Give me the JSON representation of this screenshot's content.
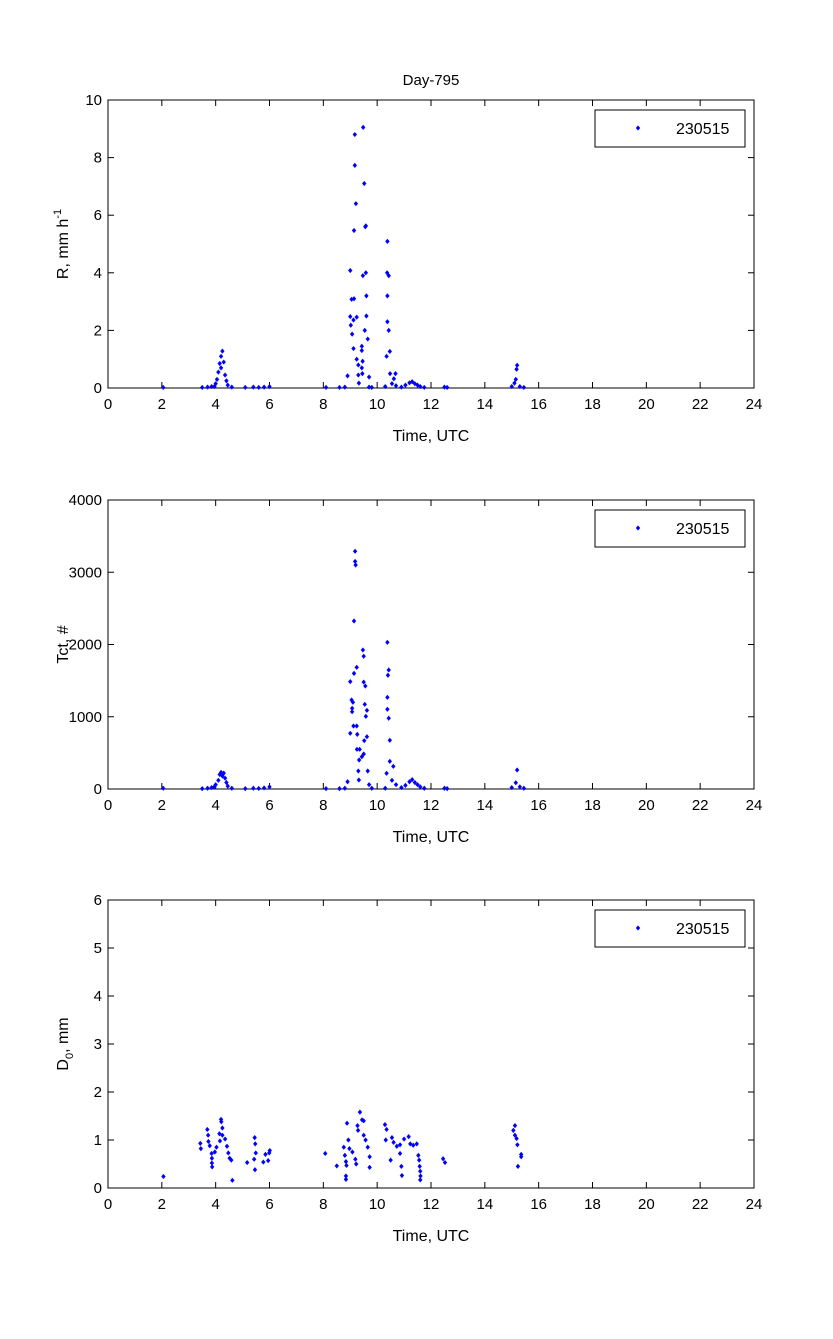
{
  "figure_title": "Day-795",
  "marker_color": "#0000ff",
  "chart_data": [
    {
      "type": "scatter",
      "title": "Day-795",
      "xlabel": "Time, UTC",
      "ylabel": "R, mm h",
      "ylabel_sup": "-1",
      "ylabel_sub": "",
      "ylabel_tail": "",
      "xlim": [
        0,
        24
      ],
      "ylim": [
        0,
        10
      ],
      "xticks": [
        "0",
        "2",
        "4",
        "6",
        "8",
        "10",
        "12",
        "14",
        "16",
        "18",
        "20",
        "22",
        "24"
      ],
      "yticks": [
        "0",
        "2",
        "4",
        "6",
        "8",
        "10"
      ],
      "legend": {
        "label": "230515",
        "placement": "top-right"
      },
      "grid": false,
      "points": [
        [
          2.05,
          0.02
        ],
        [
          3.5,
          0.02
        ],
        [
          3.7,
          0.03
        ],
        [
          3.85,
          0.05
        ],
        [
          3.95,
          0.05
        ],
        [
          4.0,
          0.15
        ],
        [
          4.05,
          0.3
        ],
        [
          4.1,
          0.55
        ],
        [
          4.15,
          0.85
        ],
        [
          4.2,
          1.1
        ],
        [
          4.25,
          1.28
        ],
        [
          4.2,
          0.7
        ],
        [
          4.3,
          0.9
        ],
        [
          4.35,
          0.45
        ],
        [
          4.4,
          0.25
        ],
        [
          4.45,
          0.1
        ],
        [
          4.6,
          0.03
        ],
        [
          5.1,
          0.02
        ],
        [
          5.4,
          0.03
        ],
        [
          5.6,
          0.02
        ],
        [
          5.8,
          0.03
        ],
        [
          6.0,
          0.05
        ],
        [
          8.1,
          0.02
        ],
        [
          8.6,
          0.02
        ],
        [
          8.8,
          0.03
        ],
        [
          8.9,
          0.42
        ],
        [
          9.0,
          4.08
        ],
        [
          9.05,
          3.08
        ],
        [
          9.14,
          3.1
        ],
        [
          9.0,
          2.48
        ],
        [
          9.12,
          2.36
        ],
        [
          9.24,
          2.46
        ],
        [
          9.02,
          2.18
        ],
        [
          9.07,
          1.87
        ],
        [
          9.12,
          1.37
        ],
        [
          9.24,
          1.0
        ],
        [
          9.17,
          8.8
        ],
        [
          9.17,
          7.73
        ],
        [
          9.21,
          6.4
        ],
        [
          9.14,
          5.47
        ],
        [
          9.48,
          9.05
        ],
        [
          9.52,
          7.1
        ],
        [
          9.58,
          5.63
        ],
        [
          9.56,
          5.6
        ],
        [
          9.47,
          3.9
        ],
        [
          9.58,
          4.0
        ],
        [
          9.6,
          3.2
        ],
        [
          9.6,
          2.5
        ],
        [
          9.54,
          2.0
        ],
        [
          9.65,
          1.7
        ],
        [
          9.43,
          1.45
        ],
        [
          9.43,
          1.3
        ],
        [
          9.46,
          0.93
        ],
        [
          9.3,
          0.8
        ],
        [
          9.43,
          0.7
        ],
        [
          9.45,
          0.5
        ],
        [
          9.3,
          0.45
        ],
        [
          9.32,
          0.17
        ],
        [
          9.7,
          0.38
        ],
        [
          9.7,
          0.03
        ],
        [
          9.8,
          0.02
        ],
        [
          10.38,
          5.09
        ],
        [
          10.37,
          4.0
        ],
        [
          10.43,
          3.9
        ],
        [
          10.38,
          3.2
        ],
        [
          10.38,
          2.3
        ],
        [
          10.43,
          2.0
        ],
        [
          10.47,
          1.27
        ],
        [
          10.35,
          1.1
        ],
        [
          10.48,
          0.5
        ],
        [
          10.68,
          0.5
        ],
        [
          10.62,
          0.32
        ],
        [
          10.55,
          0.15
        ],
        [
          10.7,
          0.08
        ],
        [
          10.9,
          0.03
        ],
        [
          11.05,
          0.1
        ],
        [
          11.2,
          0.18
        ],
        [
          11.3,
          0.22
        ],
        [
          11.4,
          0.15
        ],
        [
          11.5,
          0.1
        ],
        [
          11.6,
          0.05
        ],
        [
          11.75,
          0.02
        ],
        [
          10.3,
          0.05
        ],
        [
          12.5,
          0.03
        ],
        [
          12.6,
          0.02
        ],
        [
          15.0,
          0.05
        ],
        [
          15.1,
          0.17
        ],
        [
          15.2,
          0.79
        ],
        [
          15.18,
          0.65
        ],
        [
          15.15,
          0.3
        ],
        [
          15.3,
          0.05
        ],
        [
          15.45,
          0.02
        ]
      ]
    },
    {
      "type": "scatter",
      "xlabel": "Time, UTC",
      "ylabel": "Tct, #",
      "ylabel_sup": "",
      "ylabel_sub": "",
      "ylabel_tail": "",
      "xlim": [
        0,
        24
      ],
      "ylim": [
        0,
        4000
      ],
      "xticks": [
        "0",
        "2",
        "4",
        "6",
        "8",
        "10",
        "12",
        "14",
        "16",
        "18",
        "20",
        "22",
        "24"
      ],
      "yticks": [
        "0",
        "1000",
        "2000",
        "3000",
        "4000"
      ],
      "legend": {
        "label": "230515",
        "placement": "top-right"
      },
      "grid": false,
      "points": [
        [
          2.05,
          10
        ],
        [
          3.5,
          5
        ],
        [
          3.7,
          10
        ],
        [
          3.85,
          20
        ],
        [
          3.95,
          30
        ],
        [
          4.0,
          60
        ],
        [
          4.1,
          120
        ],
        [
          4.15,
          200
        ],
        [
          4.2,
          230
        ],
        [
          4.25,
          180
        ],
        [
          4.3,
          220
        ],
        [
          4.35,
          150
        ],
        [
          4.4,
          90
        ],
        [
          4.45,
          40
        ],
        [
          4.6,
          10
        ],
        [
          5.1,
          5
        ],
        [
          5.4,
          10
        ],
        [
          5.6,
          8
        ],
        [
          5.8,
          15
        ],
        [
          6.0,
          30
        ],
        [
          8.1,
          5
        ],
        [
          8.6,
          5
        ],
        [
          8.8,
          10
        ],
        [
          8.9,
          100
        ],
        [
          9.0,
          1486
        ],
        [
          9.05,
          1232
        ],
        [
          9.1,
          1200
        ],
        [
          9.07,
          1117
        ],
        [
          9.07,
          1070
        ],
        [
          9.0,
          771
        ],
        [
          9.12,
          872
        ],
        [
          9.24,
          872
        ],
        [
          9.18,
          3290
        ],
        [
          9.18,
          3150
        ],
        [
          9.2,
          3100
        ],
        [
          9.14,
          2325
        ],
        [
          9.24,
          1684
        ],
        [
          9.14,
          1600
        ],
        [
          9.26,
          756
        ],
        [
          9.25,
          549
        ],
        [
          9.35,
          549
        ],
        [
          9.43,
          447
        ],
        [
          9.33,
          401
        ],
        [
          9.3,
          249
        ],
        [
          9.32,
          125
        ],
        [
          9.47,
          1924
        ],
        [
          9.5,
          1837
        ],
        [
          9.5,
          1480
        ],
        [
          9.56,
          1425
        ],
        [
          9.54,
          1172
        ],
        [
          9.62,
          1089
        ],
        [
          9.58,
          1006
        ],
        [
          9.62,
          724
        ],
        [
          9.52,
          669
        ],
        [
          9.5,
          484
        ],
        [
          9.65,
          249
        ],
        [
          9.7,
          60
        ],
        [
          9.8,
          10
        ],
        [
          10.38,
          2030
        ],
        [
          10.43,
          1647
        ],
        [
          10.4,
          1574
        ],
        [
          10.38,
          1269
        ],
        [
          10.38,
          1103
        ],
        [
          10.43,
          979
        ],
        [
          10.47,
          674
        ],
        [
          10.47,
          383
        ],
        [
          10.6,
          314
        ],
        [
          10.35,
          217
        ],
        [
          10.55,
          120
        ],
        [
          10.7,
          60
        ],
        [
          10.9,
          20
        ],
        [
          11.05,
          50
        ],
        [
          11.2,
          100
        ],
        [
          11.3,
          130
        ],
        [
          11.4,
          90
        ],
        [
          11.5,
          60
        ],
        [
          11.6,
          30
        ],
        [
          11.75,
          10
        ],
        [
          10.3,
          10
        ],
        [
          12.5,
          10
        ],
        [
          12.6,
          5
        ],
        [
          15.0,
          20
        ],
        [
          15.15,
          87
        ],
        [
          15.2,
          263
        ],
        [
          15.3,
          30
        ],
        [
          15.45,
          10
        ]
      ]
    },
    {
      "type": "scatter",
      "xlabel": "Time, UTC",
      "ylabel": "D",
      "ylabel_sup": "",
      "ylabel_sub": "0",
      "ylabel_tail": ", mm",
      "xlim": [
        0,
        24
      ],
      "ylim": [
        0,
        6
      ],
      "xticks": [
        "0",
        "2",
        "4",
        "6",
        "8",
        "10",
        "12",
        "14",
        "16",
        "18",
        "20",
        "22",
        "24"
      ],
      "yticks": [
        "0",
        "1",
        "2",
        "3",
        "4",
        "5",
        "6"
      ],
      "legend": {
        "label": "230515",
        "placement": "top-right"
      },
      "grid": false,
      "points": [
        [
          2.06,
          0.24
        ],
        [
          3.43,
          0.93
        ],
        [
          3.45,
          0.82
        ],
        [
          3.69,
          1.22
        ],
        [
          3.72,
          1.1
        ],
        [
          3.73,
          0.97
        ],
        [
          3.78,
          0.88
        ],
        [
          3.85,
          0.72
        ],
        [
          3.86,
          0.62
        ],
        [
          3.86,
          0.52
        ],
        [
          3.87,
          0.44
        ],
        [
          3.97,
          0.75
        ],
        [
          4.03,
          0.85
        ],
        [
          4.14,
          1.13
        ],
        [
          4.2,
          1.43
        ],
        [
          4.21,
          1.38
        ],
        [
          4.25,
          1.25
        ],
        [
          4.25,
          1.1
        ],
        [
          4.16,
          0.98
        ],
        [
          4.35,
          1.02
        ],
        [
          4.42,
          0.87
        ],
        [
          4.47,
          0.73
        ],
        [
          4.52,
          0.62
        ],
        [
          4.58,
          0.58
        ],
        [
          4.62,
          0.16
        ],
        [
          5.17,
          0.53
        ],
        [
          5.45,
          1.05
        ],
        [
          5.47,
          0.92
        ],
        [
          5.43,
          0.6
        ],
        [
          5.46,
          0.38
        ],
        [
          5.49,
          0.73
        ],
        [
          5.77,
          0.54
        ],
        [
          5.85,
          0.7
        ],
        [
          5.95,
          0.57
        ],
        [
          5.99,
          0.73
        ],
        [
          6.01,
          0.78
        ],
        [
          8.07,
          0.72
        ],
        [
          8.5,
          0.46
        ],
        [
          8.76,
          0.85
        ],
        [
          8.8,
          0.68
        ],
        [
          8.84,
          0.55
        ],
        [
          8.86,
          0.47
        ],
        [
          8.84,
          0.25
        ],
        [
          8.84,
          0.18
        ],
        [
          8.88,
          1.35
        ],
        [
          8.93,
          1.0
        ],
        [
          8.97,
          0.82
        ],
        [
          9.08,
          0.75
        ],
        [
          9.19,
          0.6
        ],
        [
          9.22,
          0.5
        ],
        [
          9.27,
          1.3
        ],
        [
          9.29,
          1.2
        ],
        [
          9.36,
          1.58
        ],
        [
          9.44,
          1.42
        ],
        [
          9.5,
          1.4
        ],
        [
          9.5,
          1.1
        ],
        [
          9.57,
          1.0
        ],
        [
          9.65,
          0.85
        ],
        [
          9.72,
          0.65
        ],
        [
          9.72,
          0.43
        ],
        [
          10.29,
          1.32
        ],
        [
          10.35,
          1.22
        ],
        [
          10.32,
          1.0
        ],
        [
          10.5,
          0.58
        ],
        [
          10.55,
          1.05
        ],
        [
          10.61,
          0.95
        ],
        [
          10.73,
          0.87
        ],
        [
          10.85,
          0.9
        ],
        [
          10.85,
          0.72
        ],
        [
          10.9,
          0.45
        ],
        [
          10.92,
          0.26
        ],
        [
          11.0,
          1.02
        ],
        [
          11.17,
          1.07
        ],
        [
          11.23,
          0.92
        ],
        [
          11.34,
          0.89
        ],
        [
          11.47,
          0.92
        ],
        [
          11.53,
          0.68
        ],
        [
          11.56,
          0.58
        ],
        [
          11.58,
          0.45
        ],
        [
          11.6,
          0.35
        ],
        [
          11.61,
          0.25
        ],
        [
          11.6,
          0.17
        ],
        [
          12.45,
          0.61
        ],
        [
          12.52,
          0.53
        ],
        [
          15.12,
          1.3
        ],
        [
          15.06,
          1.2
        ],
        [
          15.12,
          1.1
        ],
        [
          15.18,
          1.03
        ],
        [
          15.21,
          0.9
        ],
        [
          15.35,
          0.7
        ],
        [
          15.35,
          0.65
        ],
        [
          15.23,
          0.45
        ]
      ]
    }
  ]
}
